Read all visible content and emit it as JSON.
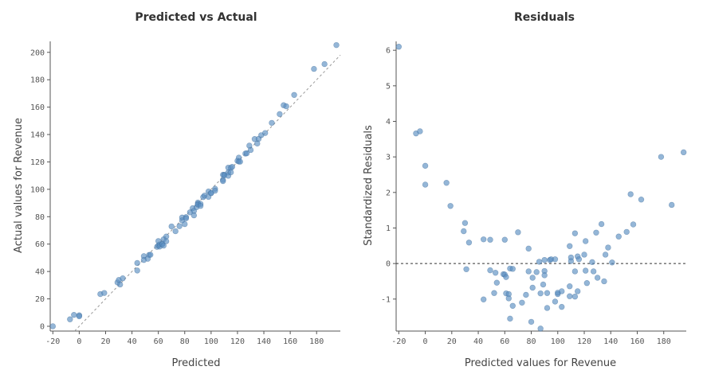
{
  "chart_data": [
    {
      "type": "scatter",
      "title": "Predicted vs Actual",
      "xlabel": "Predicted",
      "ylabel": "Actual values for Revenue",
      "xlim": [
        -22,
        198
      ],
      "ylim": [
        -3.5,
        208
      ],
      "xticks": [
        -20,
        0,
        20,
        40,
        60,
        80,
        100,
        120,
        140,
        160,
        180
      ],
      "yticks": [
        0,
        20,
        40,
        60,
        80,
        100,
        120,
        140,
        160,
        180,
        200
      ],
      "reference_line": "y = x",
      "grid": false,
      "color": "#5b8fc2",
      "points": [
        [
          -20,
          0
        ],
        [
          -7,
          5.1
        ],
        [
          -4,
          8.3
        ],
        [
          0,
          8
        ],
        [
          0,
          7.3
        ],
        [
          16,
          23.5
        ],
        [
          19,
          24.3
        ],
        [
          29,
          32
        ],
        [
          30,
          33.8
        ],
        [
          33,
          35
        ],
        [
          31,
          30.5
        ],
        [
          44,
          46.2
        ],
        [
          49,
          51.2
        ],
        [
          60,
          62.2
        ],
        [
          70,
          72.9
        ],
        [
          78,
          79.4
        ],
        [
          44,
          40.7
        ],
        [
          49,
          48.4
        ],
        [
          53,
          52.1
        ],
        [
          54,
          52.2
        ],
        [
          52,
          49.3
        ],
        [
          59,
          58
        ],
        [
          60,
          59
        ],
        [
          61,
          59.7
        ],
        [
          61,
          58.2
        ],
        [
          63,
          60.2
        ],
        [
          63,
          59.8
        ],
        [
          64,
          63.5
        ],
        [
          66,
          65.5
        ],
        [
          66,
          62.1
        ],
        [
          64,
          58.9
        ],
        [
          73,
          69.4
        ],
        [
          76,
          73.1
        ],
        [
          78,
          77.3
        ],
        [
          80,
          74.6
        ],
        [
          81,
          79.7
        ],
        [
          81,
          78.8
        ],
        [
          84,
          83.2
        ],
        [
          86,
          86.2
        ],
        [
          87,
          84.2
        ],
        [
          87,
          81
        ],
        [
          89,
          87
        ],
        [
          90,
          90.3
        ],
        [
          90,
          89.3
        ],
        [
          90,
          88.9
        ],
        [
          92,
          89.3
        ],
        [
          92,
          87.9
        ],
        [
          94,
          94.3
        ],
        [
          95,
          95.4
        ],
        [
          98,
          98.4
        ],
        [
          98,
          94.5
        ],
        [
          100,
          97.2
        ],
        [
          100,
          97.3
        ],
        [
          103,
          100.4
        ],
        [
          103,
          99
        ],
        [
          109,
          110.6
        ],
        [
          109,
          106.9
        ],
        [
          109,
          106
        ],
        [
          110,
          110.6
        ],
        [
          110,
          110.2
        ],
        [
          113,
          115.8
        ],
        [
          113,
          112.3
        ],
        [
          113,
          109.9
        ],
        [
          115,
          115.7
        ],
        [
          115,
          112.4
        ],
        [
          116,
          116.4
        ],
        [
          120,
          120.8
        ],
        [
          121,
          123.1
        ],
        [
          121,
          120.3
        ],
        [
          122,
          120.2
        ],
        [
          126,
          126.1
        ],
        [
          127,
          126.3
        ],
        [
          129,
          131.9
        ],
        [
          130,
          128.7
        ],
        [
          133,
          136.7
        ],
        [
          135,
          133.4
        ],
        [
          136,
          136.8
        ],
        [
          138,
          139.5
        ],
        [
          141,
          141.1
        ],
        [
          146,
          148.5
        ],
        [
          152,
          154.9
        ],
        [
          155,
          161.4
        ],
        [
          157,
          160.6
        ],
        [
          163,
          168.9
        ],
        [
          178,
          187.9
        ],
        [
          186,
          191.4
        ],
        [
          195,
          205.3
        ]
      ]
    },
    {
      "type": "scatter",
      "title": "Residuals",
      "xlabel": "Predicted values for Revenue",
      "ylabel": "Standardized Residuals",
      "xlim": [
        -22,
        197
      ],
      "ylim": [
        -1.9,
        6.25
      ],
      "xticks": [
        -20,
        0,
        20,
        40,
        60,
        80,
        100,
        120,
        140,
        160,
        180
      ],
      "yticks": [
        -1,
        0,
        1,
        2,
        3,
        4,
        5,
        6
      ],
      "reference_line": "y = 0",
      "grid": false,
      "color": "#5b8fc2",
      "points": [
        [
          -20,
          6.1
        ],
        [
          -7,
          3.66
        ],
        [
          -4,
          3.72
        ],
        [
          0,
          2.75
        ],
        [
          0,
          2.22
        ],
        [
          16,
          2.27
        ],
        [
          19,
          1.62
        ],
        [
          29,
          0.91
        ],
        [
          30,
          1.14
        ],
        [
          33,
          0.59
        ],
        [
          31,
          -0.16
        ],
        [
          44,
          0.68
        ],
        [
          49,
          0.67
        ],
        [
          60,
          0.67
        ],
        [
          70,
          0.88
        ],
        [
          78,
          0.42
        ],
        [
          44,
          -1.01
        ],
        [
          49,
          -0.19
        ],
        [
          53,
          -0.26
        ],
        [
          54,
          -0.54
        ],
        [
          52,
          -0.83
        ],
        [
          59,
          -0.3
        ],
        [
          60,
          -0.31
        ],
        [
          61,
          -0.38
        ],
        [
          61,
          -0.84
        ],
        [
          63,
          -0.86
        ],
        [
          63,
          -0.98
        ],
        [
          64,
          -0.14
        ],
        [
          66,
          -0.15
        ],
        [
          66,
          -1.19
        ],
        [
          64,
          -1.55
        ],
        [
          73,
          -1.1
        ],
        [
          76,
          -0.88
        ],
        [
          78,
          -0.22
        ],
        [
          80,
          -1.64
        ],
        [
          81,
          -0.4
        ],
        [
          81,
          -0.68
        ],
        [
          84,
          -0.24
        ],
        [
          86,
          0.05
        ],
        [
          87,
          -0.84
        ],
        [
          87,
          -1.83
        ],
        [
          89,
          -0.59
        ],
        [
          90,
          0.1
        ],
        [
          90,
          -0.21
        ],
        [
          90,
          -0.33
        ],
        [
          92,
          -0.83
        ],
        [
          92,
          -1.25
        ],
        [
          94,
          0.1
        ],
        [
          95,
          0.12
        ],
        [
          98,
          0.12
        ],
        [
          98,
          -1.07
        ],
        [
          100,
          -0.86
        ],
        [
          100,
          -0.82
        ],
        [
          103,
          -0.78
        ],
        [
          103,
          -1.22
        ],
        [
          109,
          0.49
        ],
        [
          109,
          -0.64
        ],
        [
          109,
          -0.92
        ],
        [
          110,
          0.17
        ],
        [
          110,
          0.07
        ],
        [
          113,
          0.85
        ],
        [
          113,
          -0.22
        ],
        [
          113,
          -0.93
        ],
        [
          115,
          0.2
        ],
        [
          115,
          -0.78
        ],
        [
          116,
          0.12
        ],
        [
          120,
          0.25
        ],
        [
          121,
          0.63
        ],
        [
          121,
          -0.2
        ],
        [
          122,
          -0.55
        ],
        [
          126,
          0.04
        ],
        [
          127,
          -0.22
        ],
        [
          129,
          0.87
        ],
        [
          130,
          -0.4
        ],
        [
          133,
          1.11
        ],
        [
          135,
          -0.5
        ],
        [
          136,
          0.25
        ],
        [
          138,
          0.45
        ],
        [
          141,
          0.03
        ],
        [
          146,
          0.76
        ],
        [
          152,
          0.89
        ],
        [
          155,
          1.95
        ],
        [
          157,
          1.1
        ],
        [
          163,
          1.8
        ],
        [
          178,
          3.0
        ],
        [
          186,
          1.65
        ],
        [
          195,
          3.13
        ]
      ]
    }
  ]
}
